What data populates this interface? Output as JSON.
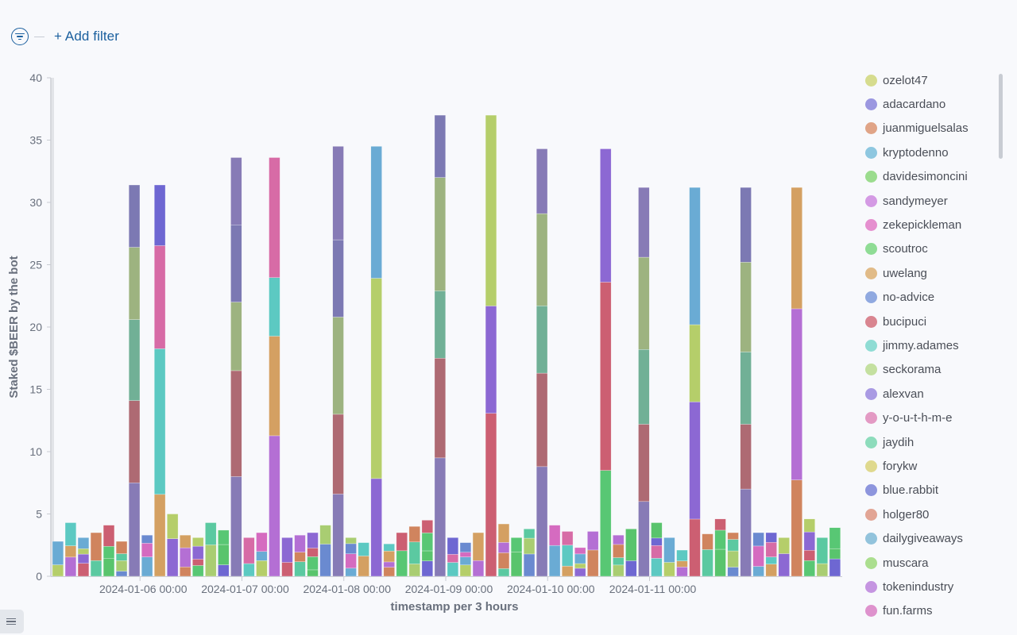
{
  "toolbar": {
    "add_filter_label": "+ Add filter"
  },
  "icons": {
    "filter": "filter-options-icon",
    "legend_toggle": "list-icon"
  },
  "chart_data": {
    "type": "bar",
    "stacked": true,
    "title": "",
    "xlabel": "timestamp per 3 hours",
    "ylabel": "Staked $BEER by the bot",
    "ylim": [
      0,
      40
    ],
    "yticks": [
      0,
      5,
      10,
      15,
      20,
      25,
      30,
      35,
      40
    ],
    "grid": false,
    "legend_position": "right",
    "x_start": "2024-01-05 03:00",
    "x_interval_hours": 3,
    "xtick_labels": [
      "2024-01-06 00:00",
      "2024-01-07 00:00",
      "2024-01-08 00:00",
      "2024-01-09 00:00",
      "2024-01-10 00:00",
      "2024-01-11 00:00"
    ],
    "totals": [
      2.8,
      4.3,
      3.1,
      3.5,
      4.1,
      2.8,
      2.6,
      3.3,
      31.4,
      5.0,
      3.3,
      3.1,
      4.3,
      3.7,
      3.7,
      3.1,
      3.5,
      33.6,
      3.1,
      3.3,
      3.5,
      4.1,
      3.1,
      3.1,
      2.7,
      34.5,
      2.6,
      3.5,
      4.0,
      4.5,
      4.5,
      3.1,
      2.7,
      3.5,
      37.0,
      4.2,
      3.1,
      3.8,
      4.3,
      4.1,
      3.6,
      2.3,
      3.6,
      34.3,
      3.3,
      3.8,
      3.1,
      4.3,
      3.1,
      2.1,
      31.2,
      3.4,
      4.6,
      3.5,
      5.8,
      3.5,
      3.5,
      3.1,
      31.2,
      4.6,
      3.1,
      3.9
    ],
    "spike_bars": [
      {
        "x": "2024-01-05 21:00",
        "segments": [
          {
            "series": "alexvan",
            "value": 7.5
          },
          {
            "series": "bucipuci",
            "value": 6.6
          },
          {
            "series": "jaydih",
            "value": 6.5
          },
          {
            "series": "seckorama",
            "value": 5.8
          },
          {
            "series": "adacardano",
            "value": 5.0
          }
        ]
      },
      {
        "x": "2024-01-06 21:00",
        "segments": [
          {
            "series": "alexvan",
            "value": 8.0
          },
          {
            "series": "bucipuci",
            "value": 8.5
          },
          {
            "series": "seckorama",
            "value": 5.5
          },
          {
            "series": "adacardano",
            "value": 6.2
          },
          {
            "series": "alexvan",
            "value": 5.4
          }
        ]
      },
      {
        "x": "2024-01-07 21:00",
        "segments": [
          {
            "series": "alexvan",
            "value": 6.6
          },
          {
            "series": "bucipuci",
            "value": 6.4
          },
          {
            "series": "seckorama",
            "value": 7.8
          },
          {
            "series": "adacardano",
            "value": 6.2
          },
          {
            "series": "alexvan",
            "value": 7.5
          }
        ]
      },
      {
        "x": "2024-01-08 21:00",
        "segments": [
          {
            "series": "alexvan",
            "value": 9.5
          },
          {
            "series": "bucipuci",
            "value": 8.0
          },
          {
            "series": "jaydih",
            "value": 5.4
          },
          {
            "series": "seckorama",
            "value": 9.1
          },
          {
            "series": "adacardano",
            "value": 5.0
          }
        ]
      },
      {
        "x": "2024-01-09 21:00",
        "segments": [
          {
            "series": "alexvan",
            "value": 8.8
          },
          {
            "series": "bucipuci",
            "value": 7.5
          },
          {
            "series": "jaydih",
            "value": 5.4
          },
          {
            "series": "seckorama",
            "value": 7.4
          },
          {
            "series": "alexvan",
            "value": 5.2
          }
        ]
      },
      {
        "x": "2024-01-10 21:00",
        "segments": [
          {
            "series": "alexvan",
            "value": 6.0
          },
          {
            "series": "bucipuci",
            "value": 6.2
          },
          {
            "series": "jaydih",
            "value": 6.0
          },
          {
            "series": "seckorama",
            "value": 7.4
          },
          {
            "series": "alexvan",
            "value": 5.6
          }
        ]
      },
      {
        "x": "2024-01-11 21:00",
        "segments": [
          {
            "series": "alexvan",
            "value": 7.0
          },
          {
            "series": "bucipuci",
            "value": 5.2
          },
          {
            "series": "jaydih",
            "value": 5.8
          },
          {
            "series": "seckorama",
            "value": 7.2
          },
          {
            "series": "adacardano",
            "value": 6.0
          }
        ]
      }
    ],
    "series": [
      {
        "name": "ozelot47",
        "color": "#d6dc8e"
      },
      {
        "name": "adacardano",
        "color": "#9b97e0"
      },
      {
        "name": "juanmiguelsalas",
        "color": "#e0a487"
      },
      {
        "name": "kryptodenno",
        "color": "#8ec7e0"
      },
      {
        "name": "davidesimoncini",
        "color": "#9bdc8e"
      },
      {
        "name": "sandymeyer",
        "color": "#d49ae4"
      },
      {
        "name": "zekepickleman",
        "color": "#e58fcf"
      },
      {
        "name": "scoutroc",
        "color": "#8fdc95"
      },
      {
        "name": "uwelang",
        "color": "#e1bb88"
      },
      {
        "name": "no-advice",
        "color": "#90a9e0"
      },
      {
        "name": "bucipuci",
        "color": "#d98590"
      },
      {
        "name": "jimmy.adames",
        "color": "#8fdcd4"
      },
      {
        "name": "seckorama",
        "color": "#c4e0a0"
      },
      {
        "name": "alexvan",
        "color": "#a99ae3"
      },
      {
        "name": "y-o-u-t-h-m-e",
        "color": "#e39ac4"
      },
      {
        "name": "jaydih",
        "color": "#8ddcbc"
      },
      {
        "name": "forykw",
        "color": "#dfd98e"
      },
      {
        "name": "blue.rabbit",
        "color": "#8d95dd"
      },
      {
        "name": "holger80",
        "color": "#e2a595"
      },
      {
        "name": "dailygiveaways",
        "color": "#92c3dc"
      },
      {
        "name": "muscara",
        "color": "#abde8f"
      },
      {
        "name": "tokenindustry",
        "color": "#c595e1"
      },
      {
        "name": "fun.farms",
        "color": "#de92cd"
      }
    ],
    "bar_palette": [
      "#b5ce6a",
      "#6e67d2",
      "#d0845e",
      "#6aabd4",
      "#59c46d",
      "#b46fd4",
      "#d56bc0",
      "#58c774",
      "#d4a062",
      "#6a8ad0",
      "#cc5f72",
      "#5cc9c2",
      "#a9cd72",
      "#8c68d3",
      "#d76ba6",
      "#5bc9a1"
    ]
  }
}
